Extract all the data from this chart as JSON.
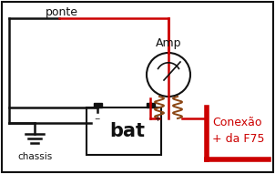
{
  "bg_color": "#ffffff",
  "red_color": "#cc0000",
  "black_color": "#111111",
  "brown_color": "#8B4513",
  "text_ponte": "ponte",
  "text_chassis": "chassis",
  "text_bat": "bat",
  "text_amp": "Amp",
  "text_conexao1": "Conexão",
  "text_conexao2": "+ da F75",
  "figsize": [
    3.02,
    1.91
  ],
  "dpi": 100
}
